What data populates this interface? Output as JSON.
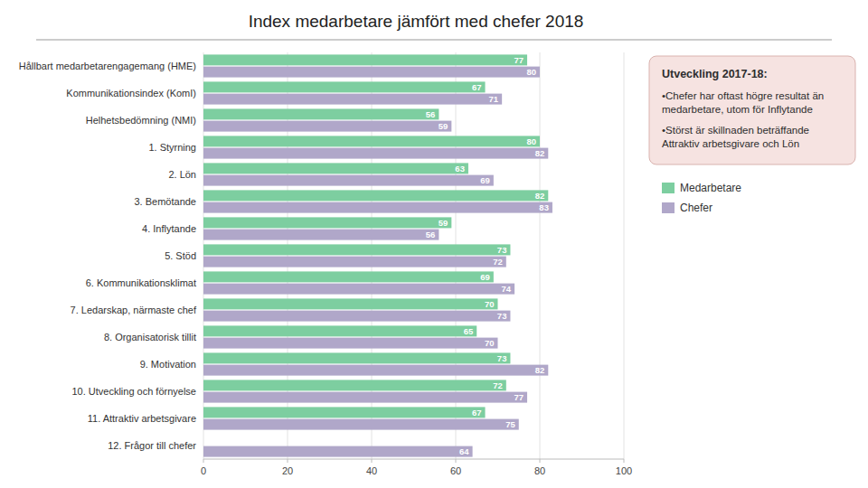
{
  "chart_data": {
    "type": "bar",
    "orientation": "horizontal",
    "title": "Index medarbetare jämfört med chefer 2018",
    "categories": [
      "Hållbart medarbetarengagemang (HME)",
      "Kommunikationsindex (KomI)",
      "Helhetsbedömning (NMI)",
      "1. Styrning",
      "2. Lön",
      "3. Bemötande",
      "4. Inflytande",
      "5. Stöd",
      "6. Kommunikationsklimat",
      "7. Ledarskap, närmaste chef",
      "8. Organisatorisk tillit",
      "9. Motivation",
      "10. Utveckling och förnyelse",
      "11. Attraktiv arbetsgivare",
      "12. Frågor till chefer"
    ],
    "series": [
      {
        "name": "Medarbetare",
        "color": "#7dcea0",
        "values": [
          77,
          67,
          56,
          80,
          63,
          82,
          59,
          73,
          69,
          70,
          65,
          73,
          72,
          67,
          0
        ]
      },
      {
        "name": "Chefer",
        "color": "#b0a7c9",
        "values": [
          80,
          71,
          59,
          82,
          69,
          83,
          56,
          72,
          74,
          73,
          70,
          82,
          77,
          75,
          64
        ]
      }
    ],
    "xlim": [
      0,
      100
    ],
    "xticks": [
      0,
      20,
      40,
      60,
      80,
      100
    ],
    "grid": true,
    "data_labels": true,
    "legend": "right",
    "annotations": [
      "Utveckling 2017-18:",
      "•Chefer har oftast högre resultat än medarbetare, utom för Inflytande",
      "•Störst är skillnaden beträffande Attraktiv arbetsgivare och Lön"
    ]
  }
}
